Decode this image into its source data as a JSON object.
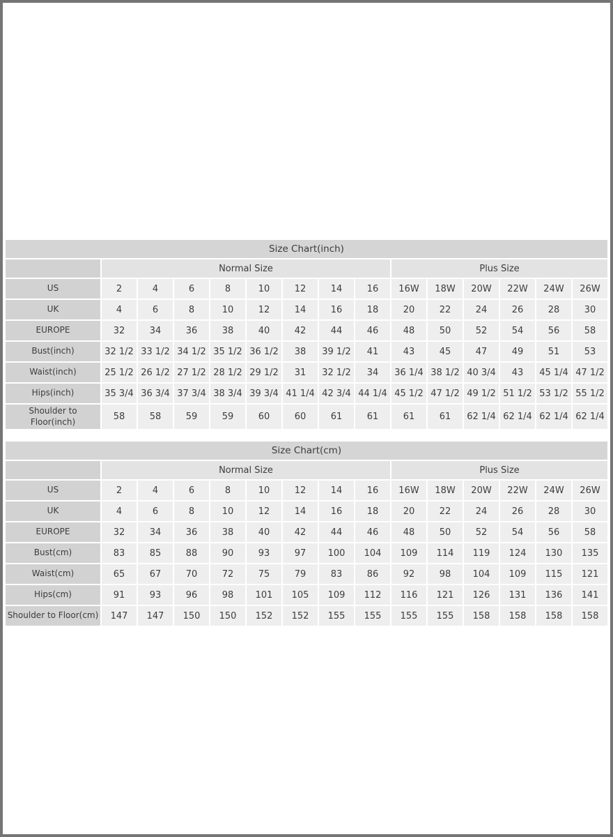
{
  "colors": {
    "page_border": "#757575",
    "title_bar_bg": "#d5d5d5",
    "group_header_bg": "#e3e3e3",
    "row_label_bg": "#d2d2d2",
    "data_cell_bg": "#eeeeee",
    "text": "#3c3c3c",
    "cell_gap": "#ffffff"
  },
  "chart_data": [
    {
      "type": "table",
      "name": "size-chart-inch",
      "title": "Size Chart(inch)",
      "group_headers": [
        {
          "label": "",
          "span": 1
        },
        {
          "label": "Normal Size",
          "span": 8
        },
        {
          "label": "Plus Size",
          "span": 6
        }
      ],
      "rows": [
        {
          "label": "US",
          "values": [
            "2",
            "4",
            "6",
            "8",
            "10",
            "12",
            "14",
            "16",
            "16W",
            "18W",
            "20W",
            "22W",
            "24W",
            "26W"
          ]
        },
        {
          "label": "UK",
          "values": [
            "4",
            "6",
            "8",
            "10",
            "12",
            "14",
            "16",
            "18",
            "20",
            "22",
            "24",
            "26",
            "28",
            "30"
          ]
        },
        {
          "label": "EUROPE",
          "values": [
            "32",
            "34",
            "36",
            "38",
            "40",
            "42",
            "44",
            "46",
            "48",
            "50",
            "52",
            "54",
            "56",
            "58"
          ]
        },
        {
          "label": "Bust(inch)",
          "values": [
            "32 1/2",
            "33 1/2",
            "34 1/2",
            "35 1/2",
            "36 1/2",
            "38",
            "39 1/2",
            "41",
            "43",
            "45",
            "47",
            "49",
            "51",
            "53"
          ]
        },
        {
          "label": "Waist(inch)",
          "values": [
            "25 1/2",
            "26 1/2",
            "27 1/2",
            "28 1/2",
            "29 1/2",
            "31",
            "32 1/2",
            "34",
            "36 1/4",
            "38 1/2",
            "40 3/4",
            "43",
            "45 1/4",
            "47 1/2"
          ]
        },
        {
          "label": "Hips(inch)",
          "values": [
            "35 3/4",
            "36 3/4",
            "37 3/4",
            "38 3/4",
            "39 3/4",
            "41 1/4",
            "42 3/4",
            "44 1/4",
            "45 1/2",
            "47 1/2",
            "49 1/2",
            "51 1/2",
            "53 1/2",
            "55 1/2"
          ]
        },
        {
          "label": "Shoulder to Floor(inch)",
          "values": [
            "58",
            "58",
            "59",
            "59",
            "60",
            "60",
            "61",
            "61",
            "61",
            "61",
            "62 1/4",
            "62 1/4",
            "62 1/4",
            "62 1/4"
          ]
        }
      ]
    },
    {
      "type": "table",
      "name": "size-chart-cm",
      "title": "Size Chart(cm)",
      "group_headers": [
        {
          "label": "",
          "span": 1
        },
        {
          "label": "Normal Size",
          "span": 8
        },
        {
          "label": "Plus Size",
          "span": 6
        }
      ],
      "rows": [
        {
          "label": "US",
          "values": [
            "2",
            "4",
            "6",
            "8",
            "10",
            "12",
            "14",
            "16",
            "16W",
            "18W",
            "20W",
            "22W",
            "24W",
            "26W"
          ]
        },
        {
          "label": "UK",
          "values": [
            "4",
            "6",
            "8",
            "10",
            "12",
            "14",
            "16",
            "18",
            "20",
            "22",
            "24",
            "26",
            "28",
            "30"
          ]
        },
        {
          "label": "EUROPE",
          "values": [
            "32",
            "34",
            "36",
            "38",
            "40",
            "42",
            "44",
            "46",
            "48",
            "50",
            "52",
            "54",
            "56",
            "58"
          ]
        },
        {
          "label": "Bust(cm)",
          "values": [
            "83",
            "85",
            "88",
            "90",
            "93",
            "97",
            "100",
            "104",
            "109",
            "114",
            "119",
            "124",
            "130",
            "135"
          ]
        },
        {
          "label": "Waist(cm)",
          "values": [
            "65",
            "67",
            "70",
            "72",
            "75",
            "79",
            "83",
            "86",
            "92",
            "98",
            "104",
            "109",
            "115",
            "121"
          ]
        },
        {
          "label": "Hips(cm)",
          "values": [
            "91",
            "93",
            "96",
            "98",
            "101",
            "105",
            "109",
            "112",
            "116",
            "121",
            "126",
            "131",
            "136",
            "141"
          ]
        },
        {
          "label": "Shoulder to Floor(cm)",
          "values": [
            "147",
            "147",
            "150",
            "150",
            "152",
            "152",
            "155",
            "155",
            "155",
            "155",
            "158",
            "158",
            "158",
            "158"
          ]
        }
      ]
    }
  ]
}
